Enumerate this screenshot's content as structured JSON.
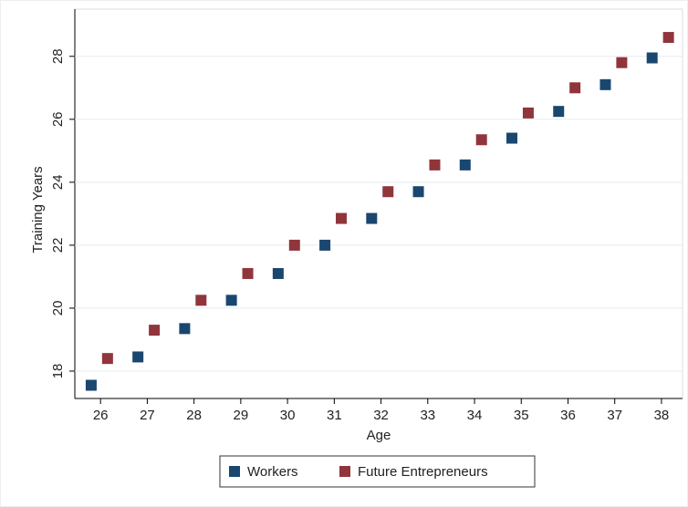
{
  "chart_data": {
    "type": "scatter",
    "x_label": "Age",
    "y_label": "Training Years",
    "xlim": [
      25.45,
      38.45
    ],
    "ylim": [
      17.13,
      29.5
    ],
    "xticks": [
      26,
      27,
      28,
      29,
      30,
      31,
      32,
      33,
      34,
      35,
      36,
      37,
      38
    ],
    "yticks": [
      18,
      20,
      22,
      24,
      26,
      28
    ],
    "grid": true,
    "legend": "bottom",
    "series": [
      {
        "name": "Workers",
        "color": "#1a476f",
        "x": [
          25.8,
          26.8,
          27.8,
          28.8,
          29.8,
          30.8,
          31.8,
          32.8,
          33.8,
          34.8,
          35.8,
          36.8,
          37.8
        ],
        "values": [
          17.55,
          18.45,
          19.35,
          20.25,
          21.1,
          22.0,
          22.85,
          23.7,
          24.55,
          25.4,
          26.25,
          27.1,
          27.95
        ]
      },
      {
        "name": "Future Entrepreneurs",
        "color": "#90353b",
        "x": [
          26.15,
          27.15,
          28.15,
          29.15,
          30.15,
          31.15,
          32.15,
          33.15,
          34.15,
          35.15,
          36.15,
          37.15,
          38.15
        ],
        "values": [
          18.4,
          19.3,
          20.25,
          21.1,
          22.0,
          22.85,
          23.7,
          24.55,
          25.35,
          26.2,
          27.0,
          27.8,
          28.6
        ]
      }
    ]
  }
}
